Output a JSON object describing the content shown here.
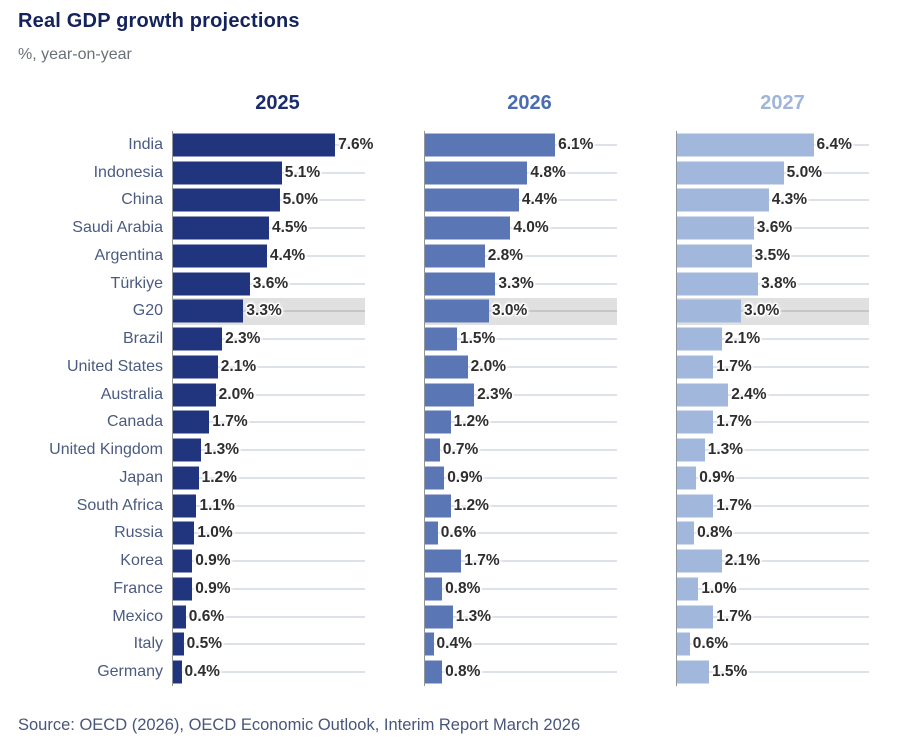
{
  "title": "Real GDP growth projections",
  "subtitle": "%, year-on-year",
  "source": "Source: OECD (2026), OECD Economic Outlook, Interim Report March 2026",
  "colors": {
    "bar_2025": "#21357f",
    "bar_2026": "#5b76b4",
    "bar_2027": "#a2b7dc",
    "header_2025": "#1a2b6e",
    "header_2026": "#4a6db1",
    "header_2027": "#9fb5da",
    "highlight_band": "#e0e0e0",
    "title_text": "#14235c",
    "country_label_text": "#4a5a80"
  },
  "chart_data": {
    "type": "bar",
    "orientation": "horizontal",
    "title": "Real GDP growth projections",
    "subtitle": "%, year-on-year",
    "panels": [
      "2025",
      "2026",
      "2027"
    ],
    "categories": [
      "India",
      "Indonesia",
      "China",
      "Saudi Arabia",
      "Argentina",
      "Türkiye",
      "G20",
      "Brazil",
      "United States",
      "Australia",
      "Canada",
      "United Kingdom",
      "Japan",
      "South Africa",
      "Russia",
      "Korea",
      "France",
      "Mexico",
      "Italy",
      "Germany"
    ],
    "highlighted_category": "G20",
    "series": [
      {
        "name": "2025",
        "values": [
          7.6,
          5.1,
          5.0,
          4.5,
          4.4,
          3.6,
          3.3,
          2.3,
          2.1,
          2.0,
          1.7,
          1.3,
          1.2,
          1.1,
          1.0,
          0.9,
          0.9,
          0.6,
          0.5,
          0.4
        ]
      },
      {
        "name": "2026",
        "values": [
          6.1,
          4.8,
          4.4,
          4.0,
          2.8,
          3.3,
          3.0,
          1.5,
          2.0,
          2.3,
          1.2,
          0.7,
          0.9,
          1.2,
          0.6,
          1.7,
          0.8,
          1.3,
          0.4,
          0.8
        ]
      },
      {
        "name": "2027",
        "values": [
          6.4,
          5.0,
          4.3,
          3.6,
          3.5,
          3.8,
          3.0,
          2.1,
          1.7,
          2.4,
          1.7,
          1.3,
          0.9,
          1.7,
          0.8,
          2.1,
          1.0,
          1.7,
          0.6,
          1.5
        ]
      }
    ],
    "value_suffix": "%",
    "xlim": [
      0,
      9
    ],
    "grid": "per-row horizontal leader lines",
    "legend_position": "none"
  }
}
